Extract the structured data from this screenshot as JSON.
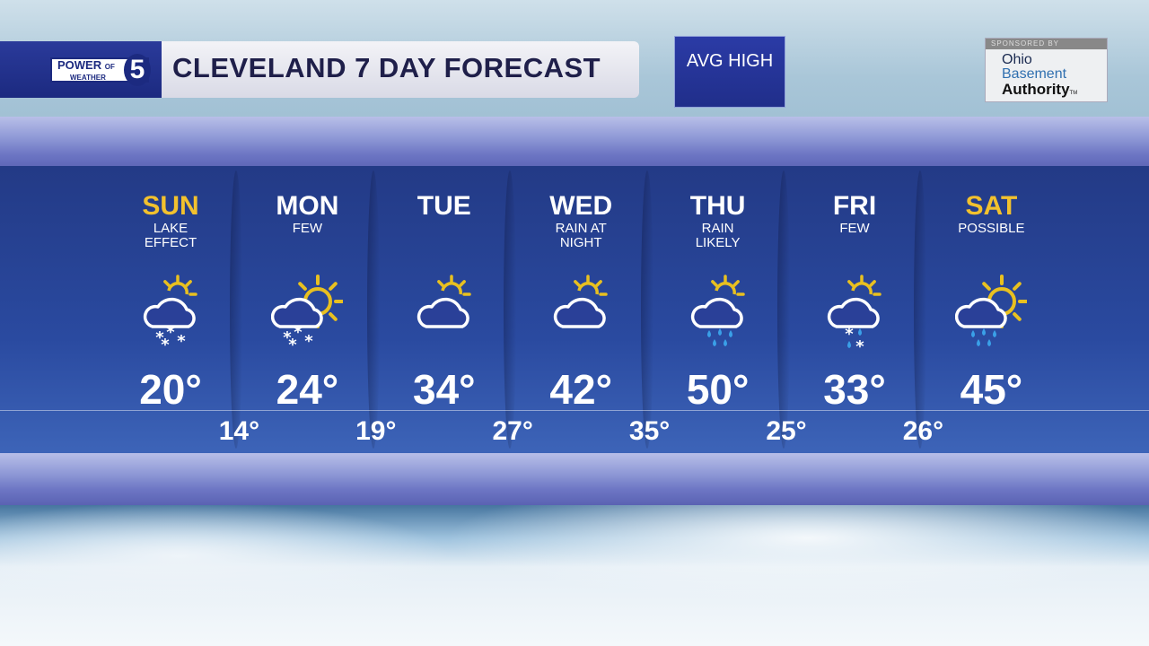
{
  "header": {
    "brand_top": "POWER",
    "brand_of": "OF",
    "brand_num": "5",
    "brand_bottom": "WEATHER",
    "title": "CLEVELAND 7 DAY FORECAST",
    "avg_high_label": "AVG HIGH"
  },
  "sponsor": {
    "label": "SPONSORED BY",
    "line1": "Ohio",
    "line2": "Basement",
    "line3": "Authority",
    "tm": "TM"
  },
  "colors": {
    "weekend": "#f2c12e",
    "weekday": "#ffffff",
    "sun": "#e8c020",
    "rain": "#3aa0e8"
  },
  "days": [
    {
      "day": "SUN",
      "weekend": true,
      "desc": [
        "LAKE",
        "EFFECT"
      ],
      "icon": "partly-sunny-snow-icon",
      "sun": "small",
      "precip": "snow",
      "high": "20°"
    },
    {
      "day": "MON",
      "weekend": false,
      "desc": [
        "FEW",
        ""
      ],
      "icon": "sunny-cloud-snow-icon",
      "sun": "big",
      "precip": "snow",
      "high": "24°"
    },
    {
      "day": "TUE",
      "weekend": false,
      "desc": [
        "",
        ""
      ],
      "icon": "partly-cloudy-icon",
      "sun": "small",
      "precip": "none",
      "high": "34°"
    },
    {
      "day": "WED",
      "weekend": false,
      "desc": [
        "RAIN AT",
        "NIGHT"
      ],
      "icon": "partly-cloudy-icon",
      "sun": "small",
      "precip": "none",
      "high": "42°"
    },
    {
      "day": "THU",
      "weekend": false,
      "desc": [
        "RAIN",
        "LIKELY"
      ],
      "icon": "partly-cloudy-rain-icon",
      "sun": "small",
      "precip": "rain",
      "high": "50°"
    },
    {
      "day": "FRI",
      "weekend": false,
      "desc": [
        "FEW",
        ""
      ],
      "icon": "partly-cloudy-mix-icon",
      "sun": "small",
      "precip": "mix",
      "high": "33°"
    },
    {
      "day": "SAT",
      "weekend": true,
      "desc": [
        "POSSIBLE",
        ""
      ],
      "icon": "sunny-cloud-rain-icon",
      "sun": "big",
      "precip": "rain",
      "high": "45°"
    }
  ],
  "lows": [
    "14°",
    "19°",
    "27°",
    "35°",
    "25°",
    "26°"
  ]
}
